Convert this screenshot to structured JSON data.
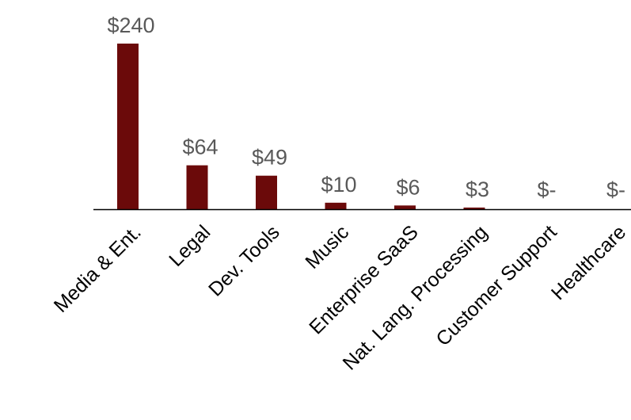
{
  "colors": {
    "bar": "#6b0a0a",
    "axis": "#000000",
    "value_label": "#595959",
    "category_label": "#000000"
  },
  "chart_data": {
    "type": "bar",
    "title": "",
    "xlabel": "",
    "ylabel": "",
    "categories": [
      "Media & Ent.",
      "Legal",
      "Dev. Tools",
      "Music",
      "Enterprise SaaS",
      "Nat. Lang. Processing",
      "Customer Support",
      "Healthcare"
    ],
    "values": [
      240,
      64,
      49,
      10,
      6,
      3,
      0,
      0
    ],
    "data_labels": [
      "$240",
      "$64",
      "$49",
      "$10",
      "$6",
      "$3",
      "$-",
      "$-"
    ],
    "ylim": [
      0,
      240
    ],
    "grid": false,
    "legend": "none"
  }
}
